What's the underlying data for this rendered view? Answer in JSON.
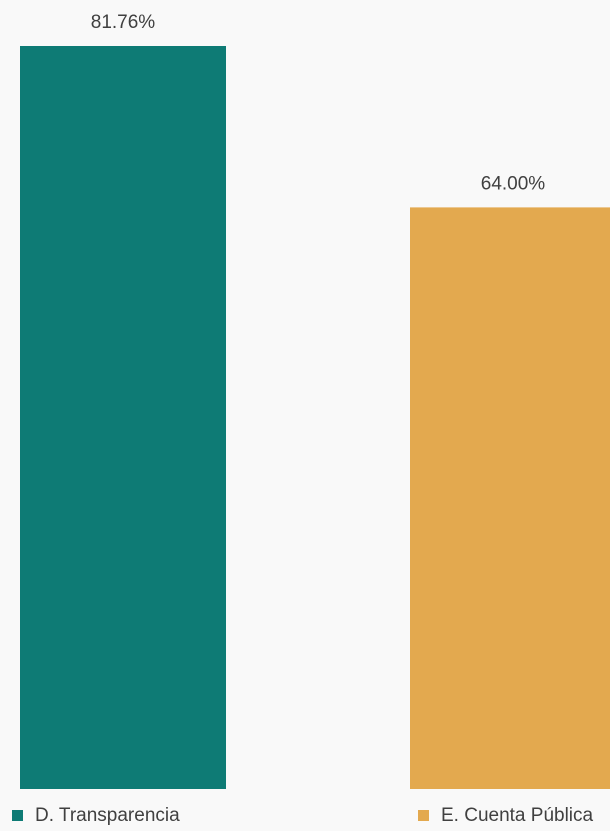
{
  "chart_data": {
    "type": "bar",
    "categories": [
      "D. Transparencia",
      "E. Cuenta Pública"
    ],
    "values": [
      81.76,
      64.0
    ],
    "data_labels": [
      "81.76%",
      "64.00%"
    ],
    "colors": [
      "#0e7b75",
      "#e3a94f"
    ],
    "ylim": [
      0,
      81.76
    ],
    "grid": false,
    "legend_position": "bottom",
    "legend": [
      {
        "label": "D. Transparencia",
        "color": "#0e7b75"
      },
      {
        "label": "E. Cuenta Pública",
        "color": "#e3a94f"
      }
    ]
  }
}
